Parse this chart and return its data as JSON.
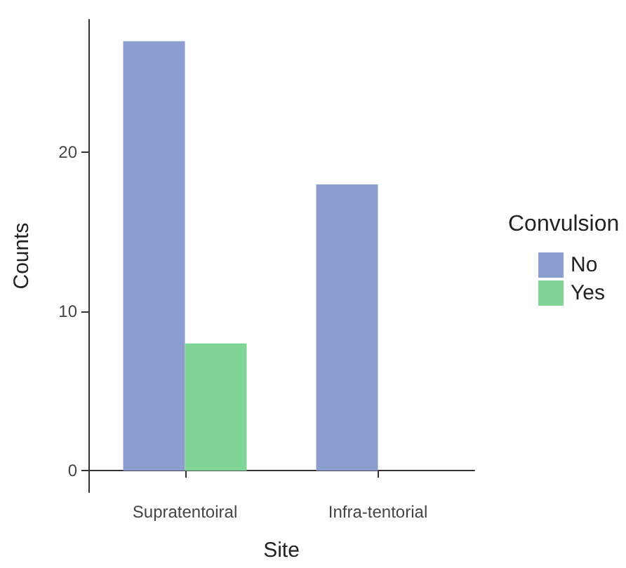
{
  "chart_data": {
    "type": "bar",
    "xlabel": "Site",
    "ylabel": "Counts",
    "legend_title": "Convulsion",
    "categories": [
      "Supratentoiral",
      "Infra-tentorial"
    ],
    "series": [
      {
        "name": "No",
        "color": "#8c9dd0",
        "values": [
          27,
          18
        ]
      },
      {
        "name": "Yes",
        "color": "#80d495",
        "values": [
          8,
          0
        ]
      }
    ],
    "ylim": [
      -1.35,
      28.35
    ],
    "yticks": [
      0,
      10,
      20
    ],
    "grid": false,
    "legend": "right"
  }
}
